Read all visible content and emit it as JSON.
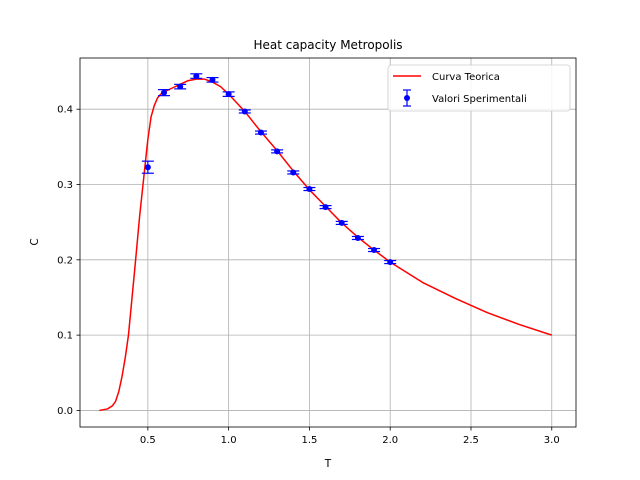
{
  "chart_data": {
    "type": "line",
    "title": "Heat capacity Metropolis",
    "xlabel": "T",
    "ylabel": "C",
    "xlim": [
      0.08,
      3.15
    ],
    "ylim": [
      -0.022,
      0.468
    ],
    "xticks": [
      0.5,
      1.0,
      1.5,
      2.0,
      2.5,
      3.0
    ],
    "xtick_labels": [
      "0.5",
      "1.0",
      "1.5",
      "2.0",
      "2.5",
      "3.0"
    ],
    "yticks": [
      0.0,
      0.1,
      0.2,
      0.3,
      0.4
    ],
    "ytick_labels": [
      "0.0",
      "0.1",
      "0.2",
      "0.3",
      "0.4"
    ],
    "grid": true,
    "legend_position": "top-right",
    "series": [
      {
        "name": "Curva Teorica",
        "kind": "line",
        "color": "#ff0000",
        "x": [
          0.2,
          0.25,
          0.28,
          0.3,
          0.32,
          0.34,
          0.36,
          0.38,
          0.4,
          0.42,
          0.45,
          0.48,
          0.5,
          0.52,
          0.54,
          0.56,
          0.58,
          0.6,
          0.65,
          0.7,
          0.75,
          0.8,
          0.85,
          0.9,
          0.95,
          1.0,
          1.1,
          1.2,
          1.3,
          1.4,
          1.5,
          1.6,
          1.7,
          1.8,
          1.9,
          2.0,
          2.2,
          2.4,
          2.6,
          2.8,
          3.0
        ],
        "y": [
          0.0,
          0.002,
          0.006,
          0.012,
          0.025,
          0.045,
          0.07,
          0.1,
          0.145,
          0.19,
          0.26,
          0.32,
          0.36,
          0.39,
          0.405,
          0.415,
          0.42,
          0.423,
          0.428,
          0.433,
          0.438,
          0.44,
          0.44,
          0.436,
          0.43,
          0.42,
          0.397,
          0.37,
          0.345,
          0.318,
          0.293,
          0.271,
          0.249,
          0.23,
          0.213,
          0.197,
          0.17,
          0.149,
          0.13,
          0.114,
          0.1
        ]
      },
      {
        "name": "Valori Sperimentali",
        "kind": "errorbar",
        "color": "#0000ff",
        "x": [
          0.5,
          0.6,
          0.7,
          0.8,
          0.9,
          1.0,
          1.1,
          1.2,
          1.3,
          1.4,
          1.5,
          1.6,
          1.7,
          1.8,
          1.9,
          2.0
        ],
        "y": [
          0.323,
          0.422,
          0.43,
          0.444,
          0.439,
          0.42,
          0.397,
          0.369,
          0.344,
          0.316,
          0.294,
          0.27,
          0.249,
          0.229,
          0.213,
          0.197
        ],
        "yerr": [
          0.008,
          0.004,
          0.003,
          0.003,
          0.003,
          0.003,
          0.002,
          0.002,
          0.002,
          0.002,
          0.002,
          0.002,
          0.002,
          0.002,
          0.002,
          0.002
        ]
      }
    ]
  }
}
